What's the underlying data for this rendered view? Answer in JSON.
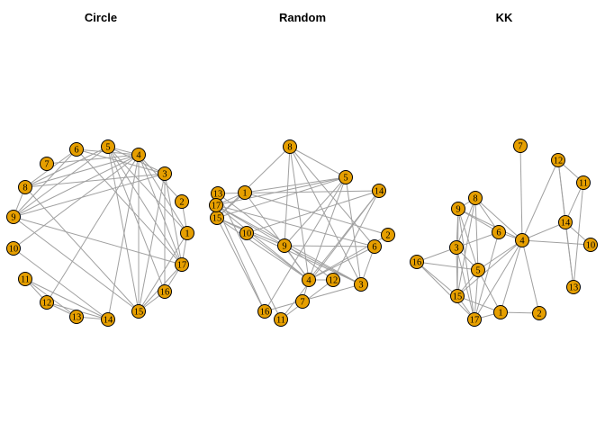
{
  "style": {
    "node_fill": "#e69f00",
    "node_stroke": "#000000",
    "edge_color": "#a0a0a0"
  },
  "node_ids": [
    "1",
    "2",
    "3",
    "4",
    "5",
    "6",
    "7",
    "8",
    "9",
    "10",
    "11",
    "12",
    "13",
    "14",
    "15",
    "16",
    "17"
  ],
  "edges": [
    [
      "1",
      "2"
    ],
    [
      "1",
      "4"
    ],
    [
      "1",
      "5"
    ],
    [
      "1",
      "15"
    ],
    [
      "1",
      "17"
    ],
    [
      "2",
      "4"
    ],
    [
      "3",
      "5"
    ],
    [
      "3",
      "6"
    ],
    [
      "3",
      "8"
    ],
    [
      "3",
      "9"
    ],
    [
      "3",
      "15"
    ],
    [
      "3",
      "16"
    ],
    [
      "3",
      "17"
    ],
    [
      "4",
      "5"
    ],
    [
      "4",
      "6"
    ],
    [
      "4",
      "7"
    ],
    [
      "4",
      "8"
    ],
    [
      "4",
      "9"
    ],
    [
      "4",
      "10"
    ],
    [
      "4",
      "12"
    ],
    [
      "4",
      "14"
    ],
    [
      "4",
      "15"
    ],
    [
      "4",
      "17"
    ],
    [
      "5",
      "8"
    ],
    [
      "5",
      "9"
    ],
    [
      "5",
      "15"
    ],
    [
      "5",
      "16"
    ],
    [
      "5",
      "17"
    ],
    [
      "6",
      "8"
    ],
    [
      "6",
      "9"
    ],
    [
      "6",
      "17"
    ],
    [
      "8",
      "9"
    ],
    [
      "8",
      "15"
    ],
    [
      "9",
      "15"
    ],
    [
      "9",
      "17"
    ],
    [
      "10",
      "14"
    ],
    [
      "11",
      "12"
    ],
    [
      "11",
      "13"
    ],
    [
      "11",
      "14"
    ],
    [
      "12",
      "13"
    ],
    [
      "12",
      "14"
    ],
    [
      "13",
      "14"
    ],
    [
      "15",
      "16"
    ],
    [
      "15",
      "17"
    ],
    [
      "16",
      "17"
    ]
  ],
  "panels": [
    {
      "title": "Circle"
    },
    {
      "title": "Random"
    },
    {
      "title": "KK"
    }
  ]
}
